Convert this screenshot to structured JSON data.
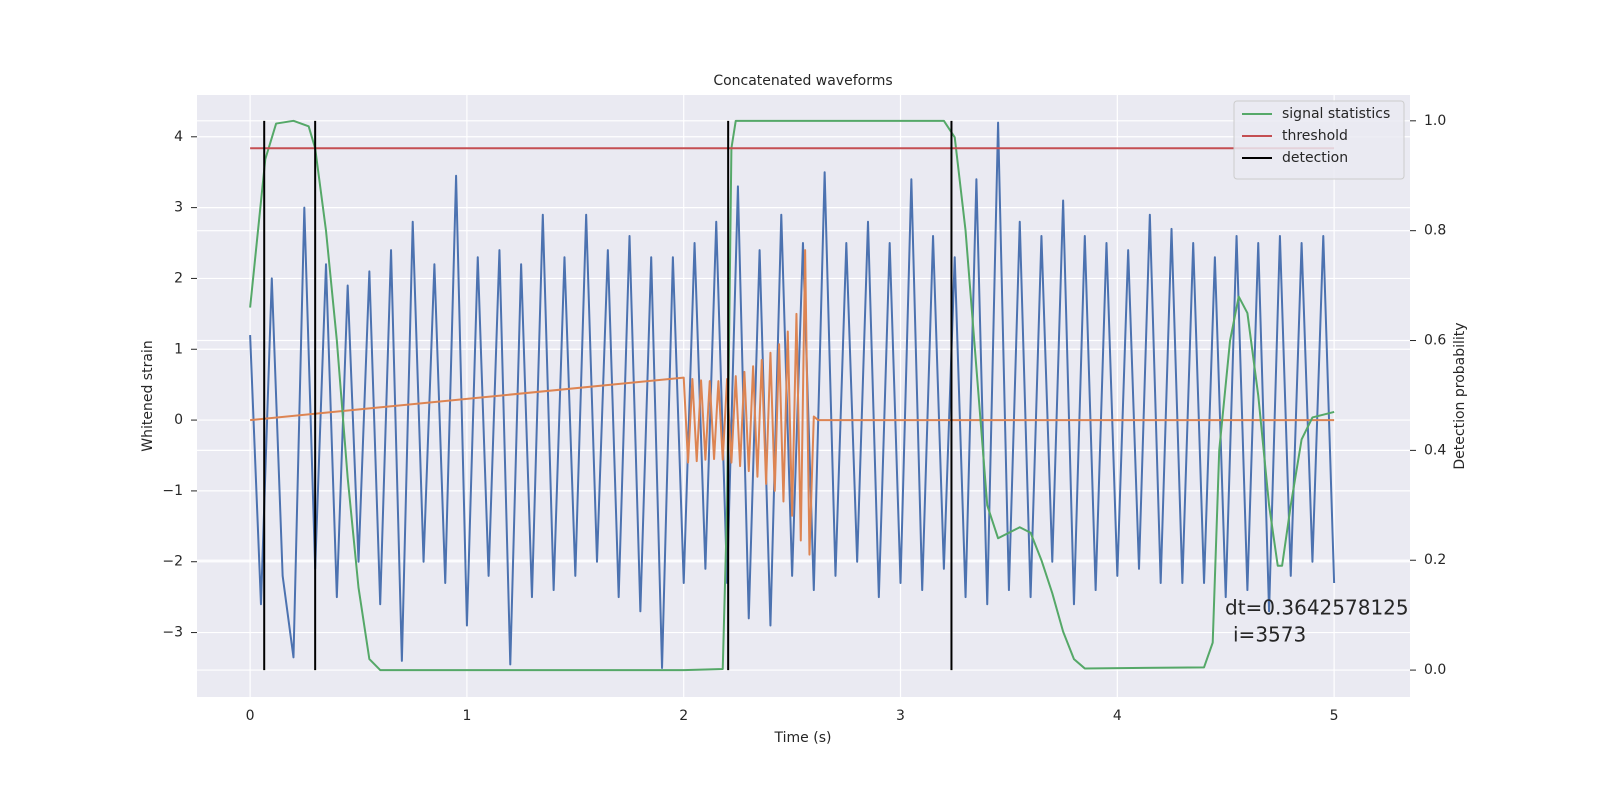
{
  "chart_data": {
    "type": "line",
    "title": "Concatenated waveforms",
    "x_label": "Time (s)",
    "y_label": "Whitened strain",
    "y2_label": "Detection probability",
    "annotation": [
      "dt=0.3642578125",
      "i=3573"
    ],
    "xlim": [
      -0.245,
      5.35
    ],
    "ylim": [
      -3.91,
      4.59
    ],
    "y2lim": [
      -0.049,
      1.047
    ],
    "xticks": [
      0,
      1,
      2,
      3,
      4,
      5
    ],
    "yticks": [
      {
        "value": -3,
        "label": "−3"
      },
      {
        "value": -2,
        "label": "−2"
      },
      {
        "value": -1,
        "label": "−1"
      },
      0,
      1,
      2,
      3,
      4
    ],
    "y2ticks": [
      0.0,
      0.2,
      0.4,
      0.6,
      0.8,
      1.0
    ],
    "grid": true,
    "legend": "upper right",
    "series": [
      {
        "color": "#4c72b0",
        "x": [
          0,
          0.05,
          0.1,
          0.15,
          0.2,
          0.25,
          0.3,
          0.35,
          0.4,
          0.45,
          0.5,
          0.55,
          0.6,
          0.65,
          0.7,
          0.75,
          0.8,
          0.85,
          0.9,
          0.95,
          1,
          1.05,
          1.1,
          1.15,
          1.2,
          1.25,
          1.3,
          1.35,
          1.4,
          1.45,
          1.5,
          1.55,
          1.6,
          1.65,
          1.7,
          1.75,
          1.8,
          1.85,
          1.9,
          1.95,
          2,
          2.05,
          2.1,
          2.15,
          2.2,
          2.25,
          2.3,
          2.35,
          2.4,
          2.45,
          2.5,
          2.55,
          2.6,
          2.65,
          2.7,
          2.75,
          2.8,
          2.85,
          2.9,
          2.95,
          3,
          3.05,
          3.1,
          3.15,
          3.2,
          3.25,
          3.3,
          3.35,
          3.4,
          3.45,
          3.5,
          3.55,
          3.6,
          3.65,
          3.7,
          3.75,
          3.8,
          3.85,
          3.9,
          3.95,
          4,
          4.05,
          4.1,
          4.15,
          4.2,
          4.25,
          4.3,
          4.35,
          4.4,
          4.45,
          4.5,
          4.55,
          4.6,
          4.65,
          4.7,
          4.75,
          4.8,
          4.85,
          4.9,
          4.95,
          5
        ],
        "values": [
          1.2,
          -2.6,
          2.0,
          -2.2,
          -3.35,
          3.0,
          -2.1,
          2.2,
          -2.5,
          1.9,
          -2.0,
          2.1,
          -2.6,
          2.4,
          -3.4,
          2.8,
          -2.0,
          2.2,
          -2.3,
          3.45,
          -2.9,
          2.3,
          -2.2,
          2.4,
          -3.45,
          2.2,
          -2.5,
          2.9,
          -2.4,
          2.3,
          -2.2,
          2.9,
          -2.0,
          2.4,
          -2.5,
          2.6,
          -2.7,
          2.3,
          -3.5,
          2.3,
          -2.3,
          2.5,
          -2.1,
          2.8,
          -2.3,
          3.3,
          -2.8,
          2.4,
          -2.9,
          2.9,
          -2.2,
          2.5,
          -2.4,
          3.5,
          -2.2,
          2.5,
          -2.0,
          2.8,
          -2.5,
          2.5,
          -2.3,
          3.4,
          -2.4,
          2.6,
          -2.1,
          2.3,
          -2.5,
          3.4,
          -2.6,
          4.2,
          -2.4,
          2.8,
          -2.5,
          2.6,
          -2.0,
          3.1,
          -2.6,
          2.6,
          -2.4,
          2.5,
          -2.2,
          2.4,
          -2.1,
          2.9,
          -2.3,
          2.7,
          -2.3,
          2.5,
          -2.3,
          2.3,
          -2.5,
          2.6,
          -2.4,
          2.5,
          -2.7,
          2.6,
          -2.2,
          2.5,
          -2.0,
          2.6,
          -2.3
        ]
      },
      {
        "color": "#dd8452",
        "x": [
          0,
          2.0,
          2.02,
          2.04,
          2.06,
          2.08,
          2.1,
          2.12,
          2.14,
          2.16,
          2.18,
          2.2,
          2.22,
          2.24,
          2.26,
          2.28,
          2.3,
          2.32,
          2.34,
          2.36,
          2.38,
          2.4,
          2.42,
          2.44,
          2.46,
          2.48,
          2.5,
          2.52,
          2.54,
          2.56,
          2.58,
          2.6,
          2.62,
          5
        ],
        "values": [
          0,
          0.6,
          -0.6,
          0.58,
          -0.58,
          0.56,
          -0.56,
          0.55,
          -0.55,
          0.55,
          -0.56,
          0.58,
          -0.6,
          0.62,
          -0.65,
          0.68,
          -0.72,
          0.76,
          -0.8,
          0.85,
          -0.9,
          0.95,
          -1.0,
          1.07,
          -1.15,
          1.25,
          -1.35,
          1.5,
          -1.7,
          2.4,
          -1.9,
          0.05,
          0,
          0
        ]
      },
      {
        "name": "signal statistics",
        "color": "#55a868",
        "axis": "y2",
        "x": [
          0,
          0.07,
          0.12,
          0.2,
          0.27,
          0.3,
          0.35,
          0.4,
          0.45,
          0.5,
          0.55,
          0.6,
          1,
          2,
          2.18,
          2.2,
          2.22,
          2.24,
          3.2,
          3.25,
          3.3,
          3.35,
          3.4,
          3.45,
          3.55,
          3.6,
          3.65,
          3.7,
          3.75,
          3.8,
          3.85,
          4.4,
          4.44,
          4.47,
          4.52,
          4.56,
          4.6,
          4.65,
          4.7,
          4.74,
          4.76,
          4.8,
          4.85,
          4.9,
          5
        ],
        "values": [
          0.66,
          0.93,
          0.995,
          1.0,
          0.99,
          0.95,
          0.8,
          0.6,
          0.35,
          0.15,
          0.02,
          0.0,
          0.0,
          0.0,
          0.002,
          0.3,
          0.95,
          1.0,
          1.0,
          0.97,
          0.8,
          0.55,
          0.3,
          0.24,
          0.26,
          0.25,
          0.2,
          0.14,
          0.07,
          0.02,
          0.003,
          0.005,
          0.05,
          0.4,
          0.6,
          0.68,
          0.65,
          0.5,
          0.3,
          0.19,
          0.19,
          0.3,
          0.42,
          0.46,
          0.47
        ]
      },
      {
        "name": "threshold",
        "color": "#c44e52",
        "axis": "y2",
        "x": [
          0,
          5
        ],
        "values": [
          0.95,
          0.95
        ]
      },
      {
        "name": "detection",
        "color": "#000000",
        "axis": "y2",
        "kind": "vlines",
        "x": [
          0.065,
          0.3,
          2.205,
          3.235
        ],
        "values": [
          1.0,
          1.0,
          1.0,
          1.0
        ]
      }
    ]
  }
}
